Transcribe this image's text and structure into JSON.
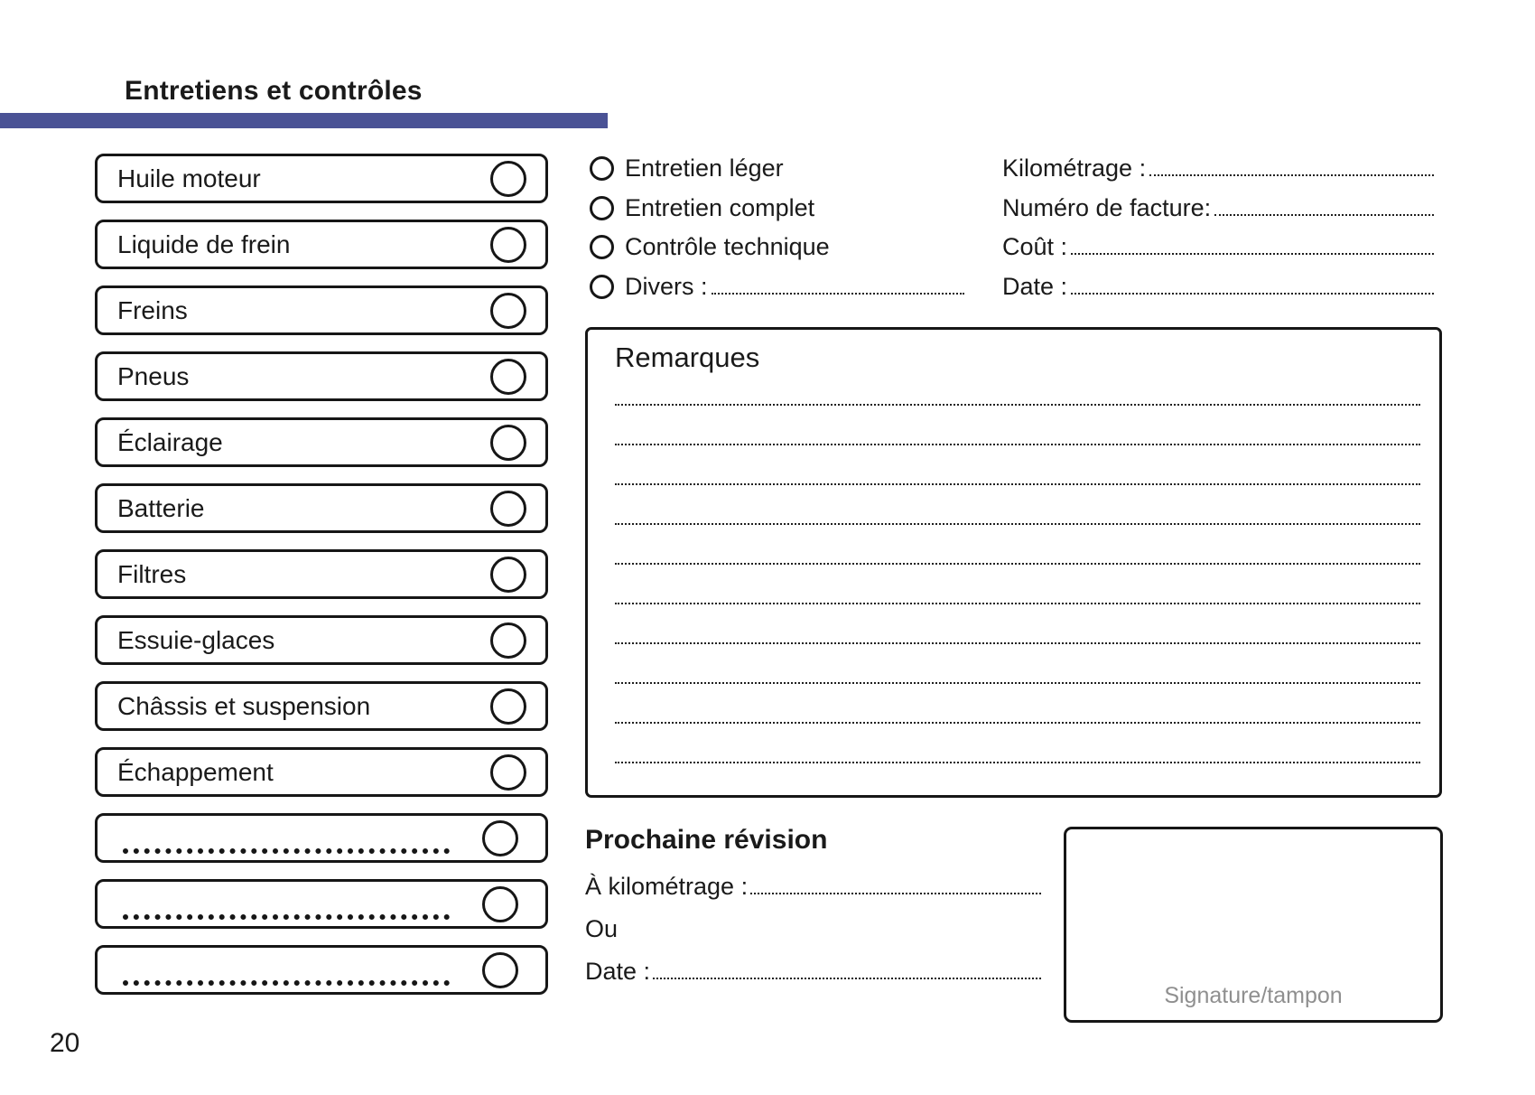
{
  "page": {
    "title": "Entretiens et contrôles",
    "page_number": "20",
    "accent_color": "#4A5295"
  },
  "checklist": {
    "items": [
      {
        "label": "Huile moteur",
        "dots": false
      },
      {
        "label": "Liquide de frein",
        "dots": false
      },
      {
        "label": "Freins",
        "dots": false
      },
      {
        "label": "Pneus",
        "dots": false
      },
      {
        "label": "Éclairage",
        "dots": false
      },
      {
        "label": "Batterie",
        "dots": false
      },
      {
        "label": "Filtres",
        "dots": false
      },
      {
        "label": "Essuie-glaces",
        "dots": false
      },
      {
        "label": "Châssis et suspension",
        "dots": false
      },
      {
        "label": "Échappement",
        "dots": false
      },
      {
        "label": "",
        "dots": true
      },
      {
        "label": "",
        "dots": true
      },
      {
        "label": "",
        "dots": true
      }
    ]
  },
  "service_type": {
    "options": [
      {
        "label": "Entretien léger",
        "has_line": false
      },
      {
        "label": "Entretien complet",
        "has_line": false
      },
      {
        "label": "Contrôle technique",
        "has_line": false
      },
      {
        "label": "Divers :",
        "has_line": true
      }
    ]
  },
  "invoice_fields": {
    "rows": [
      {
        "label": "Kilométrage :"
      },
      {
        "label": "Numéro de facture:"
      },
      {
        "label": "Coût :"
      },
      {
        "label": "Date :"
      }
    ]
  },
  "remarks": {
    "title": "Remarques",
    "line_count": 10
  },
  "next_service": {
    "title": "Prochaine révision",
    "km_label": "À kilométrage :",
    "or_label": "Ou",
    "date_label": "Date :"
  },
  "signature": {
    "label": "Signature/tampon"
  }
}
